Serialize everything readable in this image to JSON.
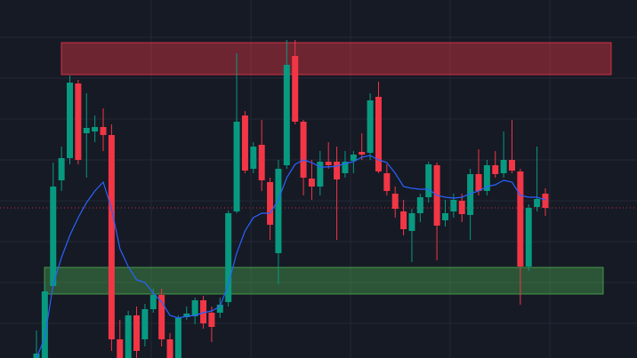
{
  "chart_data": {
    "type": "candlestick",
    "ylim": [
      0,
      403
    ],
    "up_color": "#089981",
    "down_color": "#f23645",
    "open": [
      0,
      0,
      81,
      200,
      225,
      309,
      253,
      255,
      260,
      251,
      21,
      0,
      48,
      21,
      55,
      71,
      21,
      0,
      46,
      47,
      65,
      51,
      51,
      63,
      165,
      273,
      213,
      240,
      198,
      118,
      217,
      340,
      266,
      202,
      193,
      221,
      221,
      208,
      222,
      232,
      231,
      294,
      208,
      185,
      165,
      143,
      163,
      181,
      217,
      155,
      165,
      177,
      161,
      207,
      188,
      217,
      208,
      223,
      210,
      103,
      170,
      185
    ],
    "high": [
      31,
      83,
      220,
      238,
      318,
      313,
      298,
      273,
      281,
      263,
      43,
      53,
      58,
      61,
      78,
      78,
      28,
      48,
      58,
      68,
      70,
      58,
      68,
      166,
      343,
      278,
      243,
      268,
      203,
      223,
      358,
      358,
      268,
      223,
      233,
      243,
      238,
      233,
      233,
      253,
      298,
      311,
      218,
      193,
      178,
      168,
      185,
      221,
      220,
      178,
      185,
      185,
      213,
      235,
      223,
      233,
      255,
      268,
      213,
      173,
      238,
      191
    ],
    "low": [
      0,
      0,
      81,
      188,
      218,
      218,
      203,
      243,
      233,
      8,
      0,
      0,
      0,
      13,
      51,
      13,
      0,
      0,
      43,
      38,
      33,
      18,
      45,
      58,
      163,
      208,
      208,
      188,
      133,
      83,
      213,
      263,
      183,
      178,
      183,
      213,
      133,
      203,
      208,
      223,
      223,
      208,
      183,
      158,
      138,
      108,
      153,
      175,
      110,
      148,
      158,
      153,
      133,
      183,
      183,
      203,
      203,
      208,
      60,
      98,
      165,
      160
    ],
    "close": [
      5,
      75,
      193,
      225,
      310,
      223,
      259,
      260,
      251,
      21,
      0,
      48,
      8,
      55,
      71,
      21,
      0,
      45,
      50,
      65,
      39,
      35,
      60,
      163,
      266,
      211,
      238,
      200,
      150,
      213,
      330,
      266,
      203,
      193,
      221,
      217,
      201,
      221,
      229,
      229,
      290,
      210,
      188,
      168,
      145,
      163,
      181,
      218,
      149,
      163,
      178,
      162,
      207,
      188,
      217,
      207,
      223,
      211,
      103,
      169,
      179,
      169
    ],
    "ma": {
      "color": "#2962ff",
      "values": [
        0,
        23,
        83,
        113,
        138,
        158,
        175,
        188,
        198,
        168,
        123,
        103,
        88,
        85,
        73,
        63,
        48,
        45,
        47,
        48,
        51,
        53,
        58,
        83,
        118,
        143,
        158,
        163,
        163,
        178,
        203,
        218,
        223,
        220,
        215,
        215,
        216,
        219,
        221,
        226,
        228,
        223,
        220,
        208,
        193,
        191,
        190,
        190,
        183,
        181,
        180,
        181,
        185,
        188,
        193,
        195,
        200,
        198,
        183,
        181,
        181,
        178
      ]
    },
    "zones": [
      {
        "low": 319,
        "high": 355,
        "color": "#f23645"
      },
      {
        "low": 72,
        "high": 102,
        "color": "#4caf50"
      }
    ],
    "price_line": {
      "value": 169,
      "color": "#f23645"
    }
  }
}
